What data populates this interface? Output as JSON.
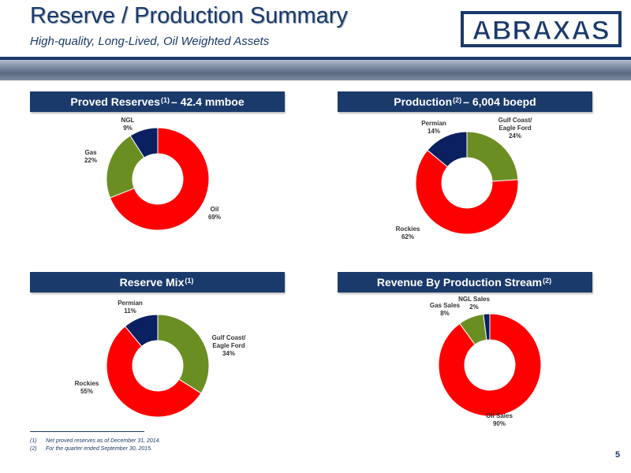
{
  "header": {
    "title": "Reserve / Production Summary",
    "subtitle": "High-quality, Long-Lived, Oil Weighted Assets",
    "logo_text": "ABRAXAS"
  },
  "sections": [
    {
      "label": "Proved Reserves",
      "sup": "(1)",
      "suffix": " – 42.4 mmboe"
    },
    {
      "label": "Production",
      "sup": "(2)",
      "suffix": " –  6,004 boepd"
    },
    {
      "label": "Reserve Mix",
      "sup": "(1)",
      "suffix": ""
    },
    {
      "label": "Revenue By Production Stream",
      "sup": "(2)",
      "suffix": ""
    }
  ],
  "chart_data": [
    {
      "type": "pie",
      "title": "Proved Reserves(1) – 42.4 mmboe",
      "donut": true,
      "slices": [
        {
          "label": "Oil",
          "value": 69,
          "pct_label": "69%",
          "color": "#ff0000"
        },
        {
          "label": "Gas",
          "value": 22,
          "pct_label": "22%",
          "color": "#6b8e23"
        },
        {
          "label": "NGL",
          "value": 9,
          "pct_label": "9%",
          "color": "#0a2060"
        }
      ]
    },
    {
      "type": "pie",
      "title": "Production(2) –  6,004 boepd",
      "donut": true,
      "slices": [
        {
          "label": "Gulf Coast/ Eagle Ford",
          "value": 24,
          "pct_label": "24%",
          "color": "#6b8e23"
        },
        {
          "label": "Rockies",
          "value": 62,
          "pct_label": "62%",
          "color": "#ff0000"
        },
        {
          "label": "Permian",
          "value": 14,
          "pct_label": "14%",
          "color": "#0a2060"
        }
      ]
    },
    {
      "type": "pie",
      "title": "Reserve Mix(1)",
      "donut": true,
      "slices": [
        {
          "label": "Gulf Coast/ Eagle Ford",
          "value": 34,
          "pct_label": "34%",
          "color": "#6b8e23"
        },
        {
          "label": "Rockies",
          "value": 55,
          "pct_label": "55%",
          "color": "#ff0000"
        },
        {
          "label": "Permian",
          "value": 11,
          "pct_label": "11%",
          "color": "#0a2060"
        }
      ]
    },
    {
      "type": "pie",
      "title": "Revenue By Production Stream(2)",
      "donut": true,
      "slices": [
        {
          "label": "Oil Sales",
          "value": 90,
          "pct_label": "90%",
          "color": "#ff0000"
        },
        {
          "label": "Gas Sales",
          "value": 8,
          "pct_label": "8%",
          "color": "#6b8e23"
        },
        {
          "label": "NGL Sales",
          "value": 2,
          "pct_label": "2%",
          "color": "#0a2060"
        }
      ]
    }
  ],
  "footnotes": [
    {
      "num": "(1)",
      "text": "Net proved reserves as of December 31, 2014."
    },
    {
      "num": "(2)",
      "text": "For the quarter ended September 30, 2015."
    }
  ],
  "page_number": "5"
}
